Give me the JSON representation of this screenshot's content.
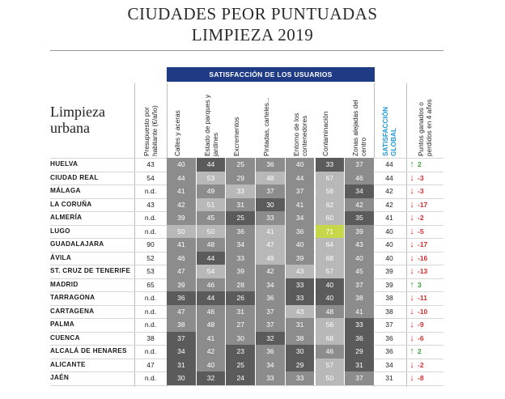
{
  "title_line1": "CIUDADES PEOR PUNTUADAS",
  "title_line2": "LIMPIEZA 2019",
  "side_title_line1": "Limpieza",
  "side_title_line2": "urbana",
  "satisfaction_header": "SATISFACCIÓN DE LOS USUARIOS",
  "columns": {
    "budget": "Presupuesto por habitante (€/año)",
    "c1": "Calles y aceras",
    "c2": "Estado de parques y jardines",
    "c3": "Excrementos",
    "c4": "Pintadas, carteles...",
    "c5": "Entorno de los contenedores",
    "c6": "Contaminación",
    "c7": "Zonas alejadas del centro",
    "global": "SATISFACCIÓN GLOBAL",
    "change": "Puntos ganados o perdidos en 4 años"
  },
  "colors": {
    "dark": "#5b5b5b",
    "mid": "#8c8c8c",
    "light": "#b8b8b8",
    "highlight": "#c6d84a",
    "header_blue": "#1f3b86",
    "up": "#3aa13a",
    "down": "#d42b2b"
  },
  "rows": [
    {
      "city": "HUELVA",
      "budget": "43",
      "vals": [
        "40",
        "44",
        "25",
        "36",
        "40",
        "33",
        "37"
      ],
      "shade": [
        "m",
        "d",
        "m",
        "m",
        "m",
        "d",
        "m"
      ],
      "global": "44",
      "dir": "up",
      "change": "2"
    },
    {
      "city": "CIUDAD REAL",
      "budget": "54",
      "vals": [
        "44",
        "53",
        "29",
        "48",
        "44",
        "67",
        "46"
      ],
      "shade": [
        "m",
        "l",
        "m",
        "l",
        "m",
        "l",
        "m"
      ],
      "global": "44",
      "dir": "down",
      "change": "-3"
    },
    {
      "city": "MÁLAGA",
      "budget": "n.d.",
      "vals": [
        "41",
        "49",
        "33",
        "37",
        "37",
        "56",
        "34"
      ],
      "shade": [
        "m",
        "m",
        "l",
        "m",
        "m",
        "l",
        "d"
      ],
      "global": "42",
      "dir": "down",
      "change": "-3"
    },
    {
      "city": "LA CORUÑA",
      "budget": "43",
      "vals": [
        "42",
        "51",
        "31",
        "30",
        "41",
        "62",
        "42"
      ],
      "shade": [
        "m",
        "l",
        "m",
        "d",
        "m",
        "l",
        "m"
      ],
      "global": "42",
      "dir": "down",
      "change": "-17"
    },
    {
      "city": "ALMERÍA",
      "budget": "n.d.",
      "vals": [
        "39",
        "45",
        "25",
        "33",
        "34",
        "60",
        "35"
      ],
      "shade": [
        "m",
        "m",
        "d",
        "m",
        "m",
        "l",
        "d"
      ],
      "global": "41",
      "dir": "down",
      "change": "-2"
    },
    {
      "city": "LUGO",
      "budget": "n.d.",
      "vals": [
        "50",
        "50",
        "36",
        "41",
        "36",
        "71",
        "39"
      ],
      "shade": [
        "l",
        "l",
        "m",
        "l",
        "m",
        "h",
        "m"
      ],
      "global": "40",
      "dir": "down",
      "change": "-5"
    },
    {
      "city": "GUADALAJARA",
      "budget": "90",
      "vals": [
        "41",
        "48",
        "34",
        "47",
        "40",
        "64",
        "43"
      ],
      "shade": [
        "m",
        "m",
        "m",
        "l",
        "m",
        "l",
        "m"
      ],
      "global": "40",
      "dir": "down",
      "change": "-17"
    },
    {
      "city": "ÁVILA",
      "budget": "52",
      "vals": [
        "46",
        "44",
        "33",
        "49",
        "39",
        "68",
        "40"
      ],
      "shade": [
        "m",
        "d",
        "m",
        "l",
        "m",
        "l",
        "m"
      ],
      "global": "40",
      "dir": "down",
      "change": "-16"
    },
    {
      "city": "ST. CRUZ DE TENERIFE",
      "budget": "53",
      "vals": [
        "47",
        "54",
        "39",
        "42",
        "43",
        "57",
        "45"
      ],
      "shade": [
        "m",
        "l",
        "m",
        "m",
        "l",
        "l",
        "m"
      ],
      "global": "39",
      "dir": "down",
      "change": "-13"
    },
    {
      "city": "MADRID",
      "budget": "65",
      "vals": [
        "39",
        "46",
        "28",
        "34",
        "33",
        "40",
        "37"
      ],
      "shade": [
        "m",
        "m",
        "m",
        "m",
        "d",
        "d",
        "m"
      ],
      "global": "39",
      "dir": "up",
      "change": "3"
    },
    {
      "city": "TARRAGONA",
      "budget": "n.d.",
      "vals": [
        "36",
        "44",
        "26",
        "36",
        "33",
        "40",
        "38"
      ],
      "shade": [
        "d",
        "d",
        "d",
        "m",
        "d",
        "d",
        "m"
      ],
      "global": "38",
      "dir": "down",
      "change": "-11"
    },
    {
      "city": "CARTAGENA",
      "budget": "n.d.",
      "vals": [
        "47",
        "46",
        "31",
        "37",
        "43",
        "48",
        "41"
      ],
      "shade": [
        "m",
        "m",
        "m",
        "m",
        "l",
        "m",
        "m"
      ],
      "global": "38",
      "dir": "down",
      "change": "-10"
    },
    {
      "city": "PALMA",
      "budget": "n.d.",
      "vals": [
        "38",
        "48",
        "27",
        "37",
        "31",
        "56",
        "33"
      ],
      "shade": [
        "m",
        "m",
        "m",
        "m",
        "m",
        "l",
        "d"
      ],
      "global": "37",
      "dir": "down",
      "change": "-9"
    },
    {
      "city": "CUENCA",
      "budget": "38",
      "vals": [
        "37",
        "41",
        "30",
        "32",
        "38",
        "68",
        "36"
      ],
      "shade": [
        "d",
        "m",
        "m",
        "d",
        "m",
        "l",
        "d"
      ],
      "global": "36",
      "dir": "down",
      "change": "-6"
    },
    {
      "city": "ALCALÁ DE HENARES",
      "budget": "n.d.",
      "vals": [
        "34",
        "42",
        "23",
        "36",
        "30",
        "46",
        "29"
      ],
      "shade": [
        "d",
        "m",
        "d",
        "m",
        "d",
        "m",
        "d"
      ],
      "global": "36",
      "dir": "up",
      "change": "2"
    },
    {
      "city": "ALICANTE",
      "budget": "47",
      "vals": [
        "31",
        "40",
        "25",
        "34",
        "29",
        "57",
        "31"
      ],
      "shade": [
        "d",
        "m",
        "d",
        "m",
        "d",
        "l",
        "d"
      ],
      "global": "34",
      "dir": "down",
      "change": "-2"
    },
    {
      "city": "JAÉN",
      "budget": "n.d.",
      "vals": [
        "30",
        "32",
        "24",
        "33",
        "33",
        "50",
        "37"
      ],
      "shade": [
        "d",
        "d",
        "d",
        "m",
        "m",
        "l",
        "m"
      ],
      "global": "31",
      "dir": "down",
      "change": "-8"
    }
  ]
}
